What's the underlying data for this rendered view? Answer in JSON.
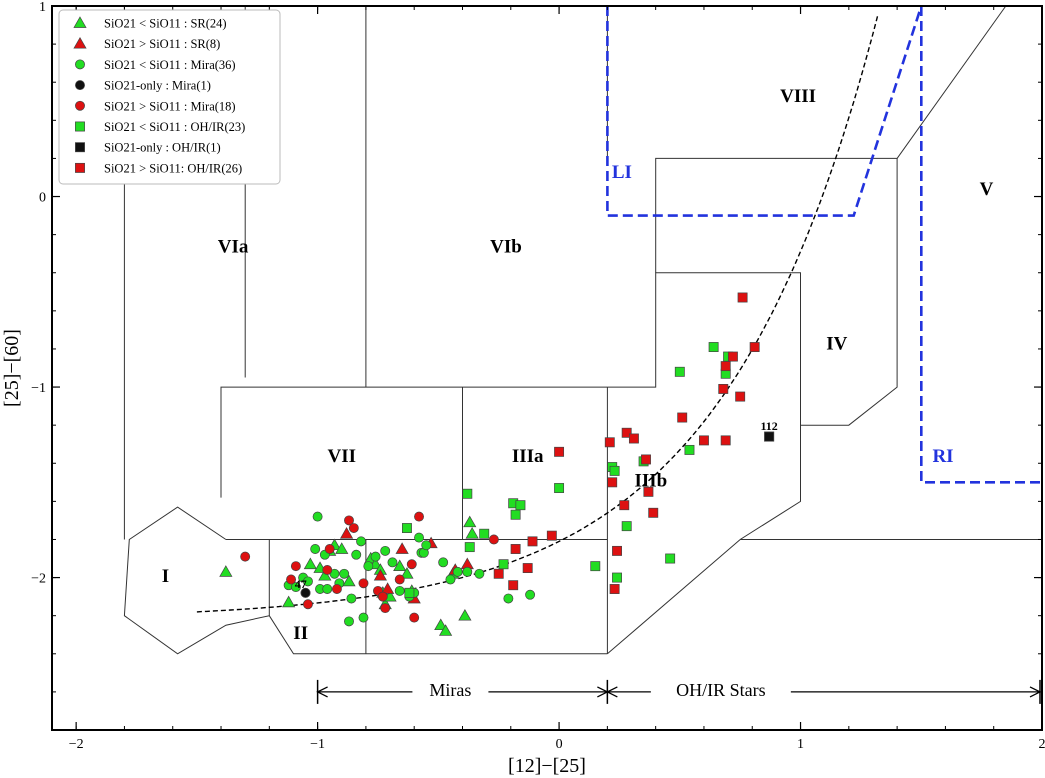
{
  "chart_data": {
    "type": "scatter",
    "title": "",
    "xlabel": "[12]−[25]",
    "ylabel": "[25]−[60]",
    "xlim": [
      -2.1,
      2.0
    ],
    "ylim": [
      -2.8,
      1.0
    ],
    "x_ticks": [
      -2,
      -1,
      0,
      1,
      2
    ],
    "x_tick_labels": [
      "−2",
      "−1",
      "0",
      "1",
      "2"
    ],
    "y_ticks": [
      1,
      0,
      -1,
      -2
    ],
    "y_tick_labels": [
      "1",
      "0",
      "−1",
      "−2"
    ],
    "region_labels": [
      {
        "text": "VIa",
        "x": -1.35,
        "y": -0.27
      },
      {
        "text": "VIb",
        "x": -0.22,
        "y": -0.27
      },
      {
        "text": "VIII",
        "x": 0.99,
        "y": 0.52
      },
      {
        "text": "V",
        "x": 1.77,
        "y": 0.03
      },
      {
        "text": "IV",
        "x": 1.15,
        "y": -0.78
      },
      {
        "text": "VII",
        "x": -0.9,
        "y": -1.37
      },
      {
        "text": "IIIa",
        "x": -0.13,
        "y": -1.37
      },
      {
        "text": "IIIb",
        "x": 0.38,
        "y": -1.5
      },
      {
        "text": "I",
        "x": -1.63,
        "y": -2.0
      },
      {
        "text": "II",
        "x": -1.07,
        "y": -2.3
      }
    ],
    "blue_labels": [
      {
        "text": "LI",
        "x": 0.26,
        "y": 0.12
      },
      {
        "text": "RI",
        "x": 1.59,
        "y": -1.37
      }
    ],
    "annotations": [
      {
        "text": "Miras",
        "x": -0.45,
        "y": -2.6
      },
      {
        "text": "OH/IR Stars",
        "x": 0.67,
        "y": -2.6
      }
    ],
    "star_labels": [
      {
        "text": "47",
        "x": -1.07,
        "y": -2.04
      },
      {
        "text": "112",
        "x": 0.87,
        "y": -1.21
      }
    ],
    "legend_position": "top-left",
    "series": [
      {
        "name": "SiO21 < SiO11 : SR(24)",
        "marker": "triangle",
        "color": "#22dd22",
        "points": [
          [
            -1.38,
            -1.97
          ],
          [
            -1.12,
            -2.13
          ],
          [
            -1.03,
            -1.93
          ],
          [
            -0.99,
            -1.95
          ],
          [
            -0.97,
            -1.99
          ],
          [
            -0.95,
            -1.86
          ],
          [
            -0.93,
            -1.83
          ],
          [
            -0.9,
            -1.85
          ],
          [
            -0.87,
            -2.02
          ],
          [
            -0.78,
            -1.9
          ],
          [
            -0.76,
            -1.93
          ],
          [
            -0.74,
            -1.96
          ],
          [
            -0.73,
            -2.08
          ],
          [
            -0.72,
            -2.14
          ],
          [
            -0.7,
            -2.1
          ],
          [
            -0.66,
            -1.94
          ],
          [
            -0.63,
            -1.98
          ],
          [
            -0.61,
            -2.07
          ],
          [
            -0.49,
            -2.25
          ],
          [
            -0.47,
            -2.28
          ],
          [
            -0.44,
            -1.98
          ],
          [
            -0.39,
            -2.2
          ],
          [
            -0.37,
            -1.71
          ],
          [
            -0.36,
            -1.77
          ]
        ]
      },
      {
        "name": "SiO21 > SiO11 : SR(8)",
        "marker": "triangle",
        "color": "#dd1111",
        "points": [
          [
            -0.88,
            -1.77
          ],
          [
            -0.74,
            -1.99
          ],
          [
            -0.71,
            -2.06
          ],
          [
            -0.65,
            -1.85
          ],
          [
            -0.6,
            -2.11
          ],
          [
            -0.53,
            -1.82
          ],
          [
            -0.43,
            -1.96
          ],
          [
            -0.38,
            -1.93
          ]
        ]
      },
      {
        "name": "SiO21 < SiO11 : Mira(36)",
        "marker": "circle",
        "color": "#22dd22",
        "points": [
          [
            -1.12,
            -2.04
          ],
          [
            -1.09,
            -2.05
          ],
          [
            -1.06,
            -2.0
          ],
          [
            -1.05,
            -2.08
          ],
          [
            -1.04,
            -2.02
          ],
          [
            -1.01,
            -1.85
          ],
          [
            -1.0,
            -1.68
          ],
          [
            -0.99,
            -2.06
          ],
          [
            -0.97,
            -1.88
          ],
          [
            -0.96,
            -2.06
          ],
          [
            -0.93,
            -1.98
          ],
          [
            -0.91,
            -2.03
          ],
          [
            -0.89,
            -1.98
          ],
          [
            -0.87,
            -2.23
          ],
          [
            -0.86,
            -2.11
          ],
          [
            -0.84,
            -1.88
          ],
          [
            -0.82,
            -1.81
          ],
          [
            -0.81,
            -2.21
          ],
          [
            -0.79,
            -1.94
          ],
          [
            -0.76,
            -1.89
          ],
          [
            -0.72,
            -1.86
          ],
          [
            -0.69,
            -1.92
          ],
          [
            -0.66,
            -2.07
          ],
          [
            -0.62,
            -2.1
          ],
          [
            -0.6,
            -2.08
          ],
          [
            -0.58,
            -1.79
          ],
          [
            -0.57,
            -1.87
          ],
          [
            -0.56,
            -1.87
          ],
          [
            -0.55,
            -1.83
          ],
          [
            -0.48,
            -1.92
          ],
          [
            -0.45,
            -2.01
          ],
          [
            -0.42,
            -1.97
          ],
          [
            -0.38,
            -1.97
          ],
          [
            -0.33,
            -1.98
          ],
          [
            -0.21,
            -2.11
          ],
          [
            -0.12,
            -2.09
          ]
        ]
      },
      {
        "name": "SiO21-only : Mira(1)",
        "marker": "circle",
        "color": "#111111",
        "points": [
          [
            -1.05,
            -2.08
          ]
        ]
      },
      {
        "name": "SiO21 > SiO11 : Mira(18)",
        "marker": "circle",
        "color": "#dd1111",
        "points": [
          [
            -1.3,
            -1.89
          ],
          [
            -1.11,
            -2.01
          ],
          [
            -1.09,
            -1.94
          ],
          [
            -1.04,
            -2.14
          ],
          [
            -0.96,
            -1.96
          ],
          [
            -0.95,
            -1.85
          ],
          [
            -0.92,
            -2.06
          ],
          [
            -0.87,
            -1.7
          ],
          [
            -0.85,
            -1.74
          ],
          [
            -0.81,
            -2.03
          ],
          [
            -0.75,
            -2.07
          ],
          [
            -0.73,
            -2.1
          ],
          [
            -0.72,
            -2.16
          ],
          [
            -0.66,
            -2.01
          ],
          [
            -0.61,
            -1.93
          ],
          [
            -0.6,
            -2.21
          ],
          [
            -0.58,
            -1.68
          ],
          [
            -0.27,
            -1.8
          ]
        ]
      },
      {
        "name": "SiO21 < SiO11 : OH/IR(23)",
        "marker": "square",
        "color": "#22dd22",
        "points": [
          [
            -0.63,
            -1.74
          ],
          [
            -0.62,
            -2.08
          ],
          [
            -0.38,
            -1.56
          ],
          [
            -0.37,
            -1.84
          ],
          [
            -0.31,
            -1.77
          ],
          [
            -0.23,
            -1.93
          ],
          [
            -0.19,
            -1.61
          ],
          [
            -0.18,
            -1.67
          ],
          [
            -0.16,
            -1.62
          ],
          [
            0.0,
            -1.53
          ],
          [
            0.15,
            -1.94
          ],
          [
            0.22,
            -1.42
          ],
          [
            0.23,
            -1.44
          ],
          [
            0.24,
            -2.0
          ],
          [
            0.28,
            -1.73
          ],
          [
            0.35,
            -1.39
          ],
          [
            0.46,
            -1.9
          ],
          [
            0.5,
            -0.92
          ],
          [
            0.54,
            -1.33
          ],
          [
            0.64,
            -0.79
          ],
          [
            0.69,
            -0.93
          ],
          [
            0.7,
            -0.84
          ],
          [
            0.87,
            -1.26
          ]
        ]
      },
      {
        "name": "SiO21-only : OH/IR(1)",
        "marker": "square",
        "color": "#111111",
        "points": [
          [
            0.87,
            -1.26
          ]
        ]
      },
      {
        "name": "SiO21 > SiO11: OH/IR(26)",
        "marker": "square",
        "color": "#dd1111",
        "points": [
          [
            -0.25,
            -1.98
          ],
          [
            -0.19,
            -2.04
          ],
          [
            -0.18,
            -1.85
          ],
          [
            -0.13,
            -1.95
          ],
          [
            -0.11,
            -1.81
          ],
          [
            -0.03,
            -1.78
          ],
          [
            0.0,
            -1.34
          ],
          [
            0.21,
            -1.29
          ],
          [
            0.22,
            -1.5
          ],
          [
            0.23,
            -2.06
          ],
          [
            0.24,
            -1.86
          ],
          [
            0.27,
            -1.62
          ],
          [
            0.28,
            -1.24
          ],
          [
            0.31,
            -1.27
          ],
          [
            0.36,
            -1.38
          ],
          [
            0.37,
            -1.55
          ],
          [
            0.39,
            -1.66
          ],
          [
            0.51,
            -1.16
          ],
          [
            0.6,
            -1.28
          ],
          [
            0.68,
            -1.01
          ],
          [
            0.69,
            -1.28
          ],
          [
            0.69,
            -0.89
          ],
          [
            0.72,
            -0.84
          ],
          [
            0.75,
            -1.05
          ],
          [
            0.76,
            -0.53
          ],
          [
            0.81,
            -0.79
          ]
        ]
      }
    ]
  }
}
